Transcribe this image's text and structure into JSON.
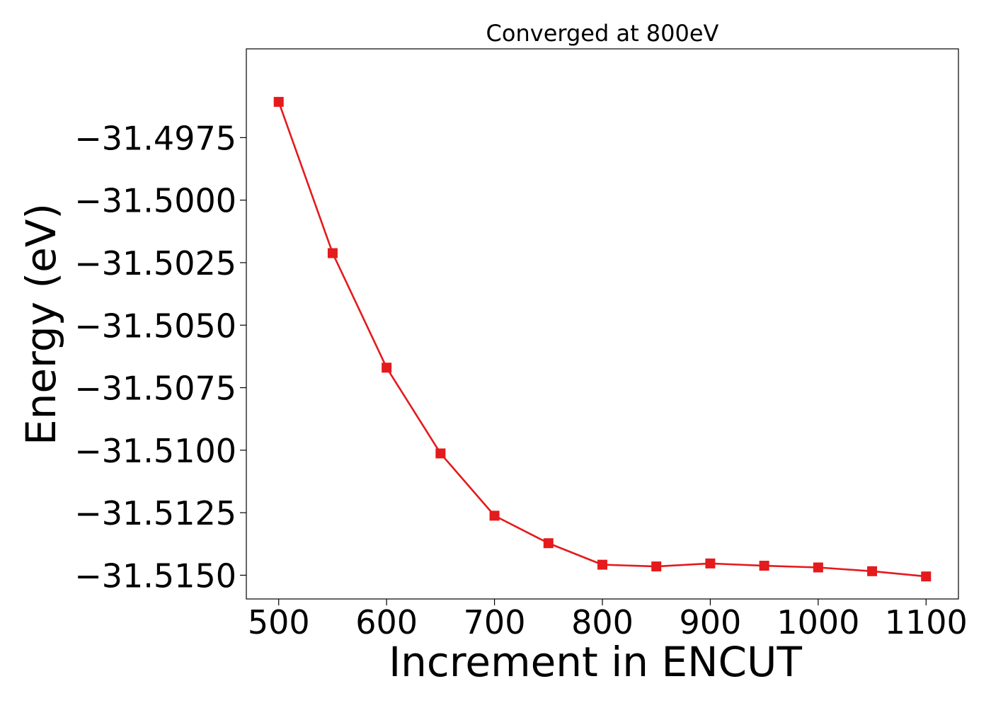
{
  "chart_data": {
    "type": "line",
    "title": "Converged at 800eV",
    "xlabel": "Increment in ENCUT",
    "ylabel": "Energy (eV)",
    "xlim": [
      470,
      1130
    ],
    "ylim": [
      -31.51595,
      -31.49395
    ],
    "xticks": [
      500,
      600,
      700,
      800,
      900,
      1000,
      1100
    ],
    "xtick_labels": [
      "500",
      "600",
      "700",
      "800",
      "900",
      "1000",
      "1100"
    ],
    "yticks": [
      -31.4975,
      -31.5,
      -31.5025,
      -31.505,
      -31.5075,
      -31.51,
      -31.5125,
      -31.515
    ],
    "ytick_labels": [
      "−31.4975",
      "−31.5000",
      "−31.5025",
      "−31.5050",
      "−31.5075",
      "−31.5100",
      "−31.5125",
      "−31.5150"
    ],
    "grid": false,
    "series": [
      {
        "color": "#e41a1c",
        "marker": "square",
        "x": [
          500,
          550,
          600,
          650,
          700,
          750,
          800,
          850,
          900,
          950,
          1000,
          1050,
          1100
        ],
        "y": [
          -31.49607,
          -31.50212,
          -31.5067,
          -31.51013,
          -31.51262,
          -31.51372,
          -31.51458,
          -31.51465,
          -31.51453,
          -31.51462,
          -31.51469,
          -31.51484,
          -31.51505
        ]
      }
    ]
  }
}
